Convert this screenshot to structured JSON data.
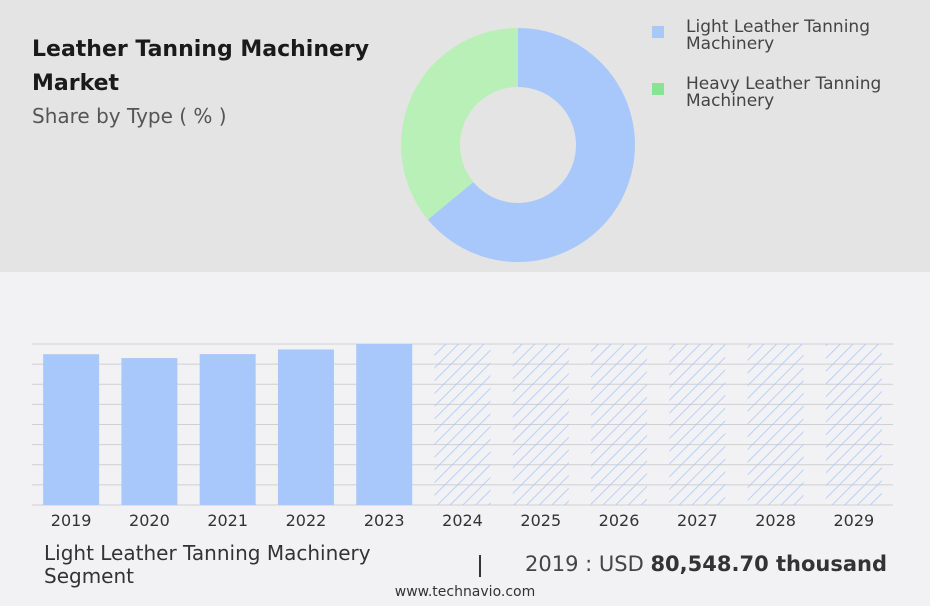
{
  "header": {
    "title": "Leather Tanning Machinery Market",
    "subtitle": "Share by Type ( % )"
  },
  "legend": [
    {
      "label": "Light Leather Tanning Machinery",
      "color": "#a8c8fc"
    },
    {
      "label": "Heavy Leather Tanning Machinery",
      "color": "#a8eaa8"
    }
  ],
  "chart_data": [
    {
      "type": "pie",
      "variant": "donut",
      "categories": [
        "Light Leather Tanning Machinery",
        "Heavy Leather Tanning Machinery"
      ],
      "values": [
        64,
        36
      ],
      "colors": [
        "#a8c8fc",
        "#b8f0b8"
      ]
    },
    {
      "type": "bar",
      "categories": [
        "2019",
        "2020",
        "2021",
        "2022",
        "2023",
        "2024",
        "2025",
        "2026",
        "2027",
        "2028",
        "2029"
      ],
      "values": [
        80548.7,
        78500,
        80600,
        83100,
        86000,
        86000,
        86000,
        86000,
        86000,
        86000,
        86000
      ],
      "forecast_from": "2024",
      "ylim": [
        0,
        86000
      ],
      "grid": true,
      "bar_color": "#a8c8fc"
    }
  ],
  "summary": {
    "segment_label": "Light Leather Tanning Machinery Segment",
    "separator": "|",
    "year_prefix": "2019 : USD",
    "value": "80,548.70 thousand"
  },
  "footer": {
    "website": "www.technavio.com"
  }
}
